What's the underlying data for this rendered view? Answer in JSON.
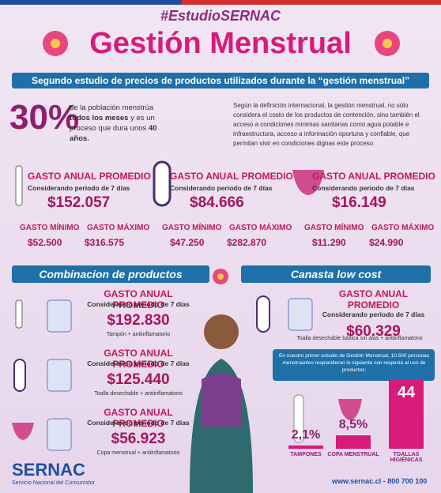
{
  "header": {
    "hashtag": "#EstudioSERNAC",
    "title": "Gestión Menstrual",
    "subtitle": "Segundo estudio de precios de productos utilizados durante la “gestión menstrual”"
  },
  "intro": {
    "stat": "30%",
    "text_1": "de la población menstrúa",
    "text_2": "todos los meses",
    "text_3": "y es un proceso que dura unos",
    "text_4": "40 años.",
    "definition": "Según la definición internacional, la gestión menstrual, no sólo considera el costo de los productos de contención, sino también el acceso a condiciones mínimas sanitarias como agua potable e infraestructura, acceso a información oportuna y confiable, que permitan vivir en condiciones dignas este proceso."
  },
  "products": [
    {
      "heading": "GASTO ANUAL PROMEDIO",
      "sub": "Considerando periodo de 7 días",
      "amount": "$152.057",
      "min_label": "GASTO MÍNIMO",
      "min": "$52.500",
      "max_label": "GASTO MÁXIMO",
      "max": "$316.575"
    },
    {
      "heading": "GASTO ANUAL PROMEDIO",
      "sub": "Considerando periodo de 7 días",
      "amount": "$84.666",
      "min_label": "GASTO MÍNIMO",
      "min": "$47.250",
      "max_label": "GASTO MÁXIMO",
      "max": "$282.870"
    },
    {
      "heading": "GASTO ANUAL PROMEDIO",
      "sub": "Considerando periodo de 7 días",
      "amount": "$16.149",
      "min_label": "GASTO MÍNIMO",
      "min": "$11.290",
      "max_label": "GASTO MÁXIMO",
      "max": "$24.990"
    }
  ],
  "combinations": {
    "title": "Combinacion de productos",
    "items": [
      {
        "heading": "GASTO ANUAL PROMEDIO",
        "sub": "Considerando periodo de 7 días",
        "amount": "$192.830",
        "note": "Tampón + antiinflamatorio"
      },
      {
        "heading": "GASTO ANUAL PROMEDIO",
        "sub": "Considerando periodo de 7 días",
        "amount": "$125.440",
        "note": "Toalla desechable + antiinflamatorio"
      },
      {
        "heading": "GASTO ANUAL PROMEDIO",
        "sub": "Considerando periodo de 7 días",
        "amount": "$56.923",
        "note": "Copa menstrual + antiinflamatorio"
      }
    ]
  },
  "low_cost": {
    "title": "Canasta low cost",
    "heading": "GASTO ANUAL PROMEDIO",
    "sub": "Considerando periodo de 7 días",
    "amount": "$60.329",
    "note": "Toalla desechable básica sin alas + antiinflamatorio"
  },
  "survey": {
    "intro": "En nuestro primer estudio de Gestión Menstrual, 10.500 personas menstruantes respondieron lo siguiente con respecto al uso de productos:",
    "bars": [
      {
        "label": "TAMPONES",
        "value": 2.1,
        "value_label": "2,1%"
      },
      {
        "label": "COPA MENSTRUAL",
        "value": 8.5,
        "value_label": "8,5%"
      },
      {
        "label": "TOALLAS HIGIÉNICAS",
        "value": 44
      }
    ]
  },
  "footer": {
    "brand": "SERNAC",
    "brand_sub": "Servicio Nacional del Consumidor",
    "contact": "www.sernac.cl - 800 700 100"
  }
}
